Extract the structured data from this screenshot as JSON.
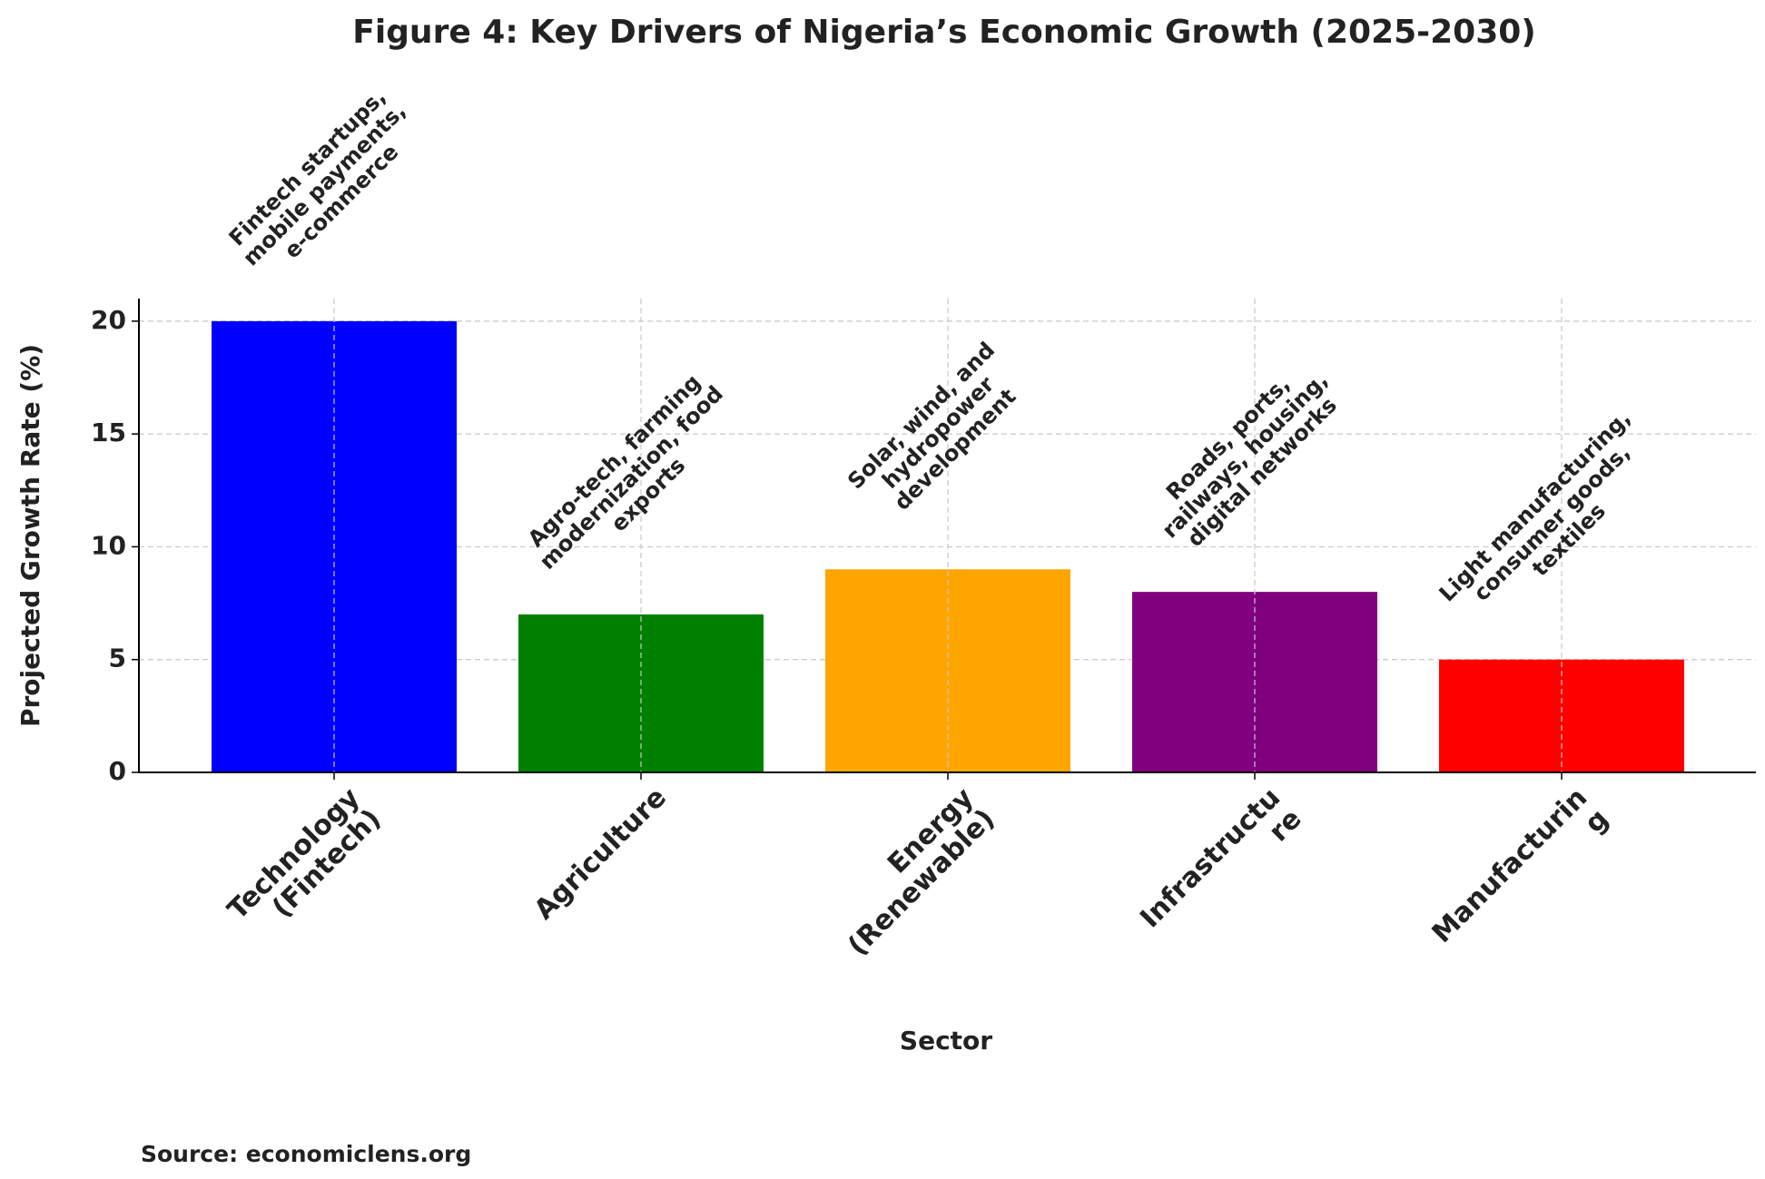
{
  "chart_data": {
    "type": "bar",
    "title": "Figure 4: Key Drivers of Nigeria’s Economic Growth (2025-2030)",
    "xlabel": "Sector",
    "ylabel": "Projected Growth Rate (%)",
    "source": "Source: economiclens.org",
    "categories": [
      "Technology\n(Fintech)",
      "Agriculture",
      "Energy\n(Renewable)",
      "Infrastructu\nre",
      "Manufacturin\ng"
    ],
    "values": [
      20,
      7,
      9,
      8,
      5
    ],
    "colors": [
      "#0000ff",
      "#008000",
      "#ffa500",
      "#800080",
      "#ff0000"
    ],
    "annotations": [
      "Fintech startups,\nmobile payments,\ne-commerce",
      "Agro-tech, farming\nmodernization, food\nexports",
      "Solar, wind, and\nhydropower\ndevelopment",
      "Roads, ports,\nrailways, housing,\ndigital networks",
      "Light manufacturing,\nconsumer goods,\ntextiles"
    ],
    "ylim": [
      0,
      21
    ],
    "yticks": [
      0,
      5,
      10,
      15,
      20
    ],
    "grid": true
  }
}
